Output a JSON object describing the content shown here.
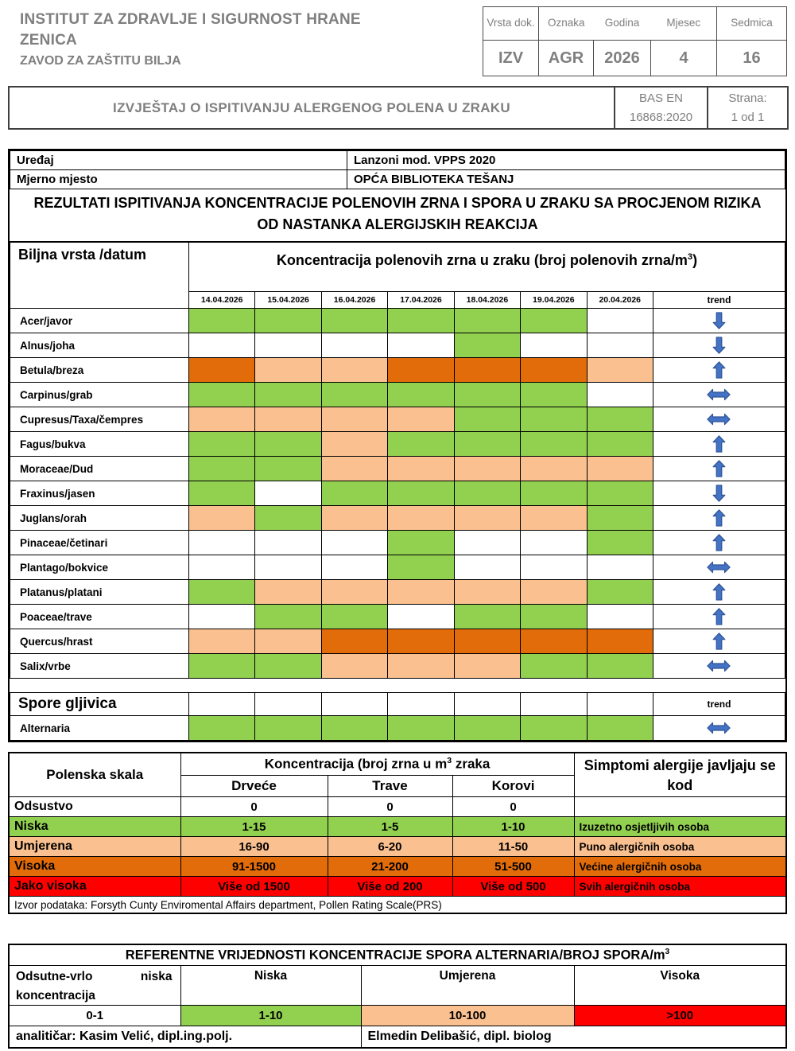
{
  "colors": {
    "level_low": "#92D050",
    "level_moderate": "#FAC08F",
    "level_high": "#E36C0A",
    "level_very_high": "#FF0000",
    "trend_arrow_fill": "#4472C4",
    "trend_arrow_stroke": "#2F5496",
    "header_text_gray": "#7F7F7F"
  },
  "letterhead": {
    "org_lines": [
      "INSTITUT ZA ZDRAVLJE I SIGURNOST HRANE",
      "ZENICA"
    ],
    "department": "ZAVOD ZA ZAŠTITU BILJA",
    "doc_meta": {
      "headers": [
        "Vrsta dok.",
        "Oznaka",
        "Godina",
        "Mjesec",
        "Sedmica"
      ],
      "values": [
        "IZV",
        "AGR",
        "2026",
        "4",
        "16"
      ]
    },
    "report_title": "IZVJEŠTAJ O ISPITIVANJU ALERGENOG POLENA U ZRAKU",
    "standard": [
      "BAS EN",
      "16868:2020"
    ],
    "page_label": "Strana:",
    "page_value": "1 od 1"
  },
  "main_table": {
    "device_label": "Uređaj",
    "device_value": "Lanzoni mod. VPPS 2020",
    "site_label": "Mjerno mjesto",
    "site_value": "OPĆA BIBLIOTEKA TEŠANJ",
    "results_title": "REZULTATI ISPITIVANJA KONCENTRACIJE POLENOVIH ZRNA I SPORA U ZRAKU SA PROCJENOM RIZIKA OD NASTANKA ALERGIJSKIH REAKCIJA",
    "species_date_header": "Biljna vrsta /datum",
    "concentration_header": {
      "prefix": "Koncentracija polenovih zrna u zraku (broj polenovih zrna/m",
      "sup": "3",
      "suffix": ")"
    },
    "dates": [
      "14.04.2026",
      "15.04.2026",
      "16.04.2026",
      "17.04.2026",
      "18.04.2026",
      "19.04.2026",
      "20.04.2026"
    ],
    "trend_label": "trend",
    "pollen_rows": [
      {
        "name": "Acer/javor",
        "levels": [
          "low",
          "low",
          "low",
          "low",
          "low",
          "low",
          "none"
        ],
        "trend": "down"
      },
      {
        "name": "Alnus/joha",
        "levels": [
          "none",
          "none",
          "none",
          "none",
          "low",
          "none",
          "none"
        ],
        "trend": "down"
      },
      {
        "name": "Betula/breza",
        "levels": [
          "high",
          "moderate",
          "moderate",
          "high",
          "high",
          "high",
          "moderate"
        ],
        "trend": "up"
      },
      {
        "name": "Carpinus/grab",
        "levels": [
          "low",
          "low",
          "low",
          "low",
          "low",
          "low",
          "none"
        ],
        "trend": "stable"
      },
      {
        "name": "Cupresus/Taxa/čempres",
        "levels": [
          "moderate",
          "moderate",
          "moderate",
          "moderate",
          "low",
          "low",
          "low"
        ],
        "trend": "stable"
      },
      {
        "name": "Fagus/bukva",
        "levels": [
          "low",
          "low",
          "moderate",
          "low",
          "low",
          "low",
          "low"
        ],
        "trend": "up"
      },
      {
        "name": "Moraceae/Dud",
        "levels": [
          "low",
          "low",
          "moderate",
          "moderate",
          "moderate",
          "moderate",
          "moderate"
        ],
        "trend": "up"
      },
      {
        "name": "Fraxinus/jasen",
        "levels": [
          "low",
          "none",
          "low",
          "low",
          "low",
          "low",
          "low"
        ],
        "trend": "down"
      },
      {
        "name": "Juglans/orah",
        "levels": [
          "moderate",
          "low",
          "moderate",
          "moderate",
          "moderate",
          "moderate",
          "low"
        ],
        "trend": "up"
      },
      {
        "name": "Pinaceae/četinari",
        "levels": [
          "none",
          "none",
          "none",
          "low",
          "none",
          "none",
          "low"
        ],
        "trend": "up"
      },
      {
        "name": "Plantago/bokvice",
        "levels": [
          "none",
          "none",
          "none",
          "low",
          "none",
          "none",
          "none"
        ],
        "trend": "stable"
      },
      {
        "name": "Platanus/platani",
        "levels": [
          "low",
          "moderate",
          "moderate",
          "moderate",
          "moderate",
          "moderate",
          "low"
        ],
        "trend": "up"
      },
      {
        "name": "Poaceae/trave",
        "levels": [
          "none",
          "low",
          "low",
          "none",
          "low",
          "low",
          "none"
        ],
        "trend": "up"
      },
      {
        "name": "Quercus/hrast",
        "levels": [
          "moderate",
          "moderate",
          "high",
          "high",
          "high",
          "high",
          "high"
        ],
        "trend": "up"
      },
      {
        "name": "Salix/vrbe",
        "levels": [
          "low",
          "low",
          "moderate",
          "moderate",
          "moderate",
          "low",
          "low"
        ],
        "trend": "stable"
      }
    ],
    "spores_section_label": "Spore gljivica",
    "spores_trend_label": "trend",
    "spore_rows": [
      {
        "name": "Alternaria",
        "levels": [
          "low",
          "low",
          "low",
          "low",
          "low",
          "low",
          "low"
        ],
        "trend": "stable"
      }
    ]
  },
  "scale_table": {
    "col1_header": "Polenska skala",
    "conc_header": {
      "prefix": "Koncentracija (broj zrna u m",
      "sup": "3",
      "suffix": " zraka"
    },
    "symptoms_header": "Simptomi alergije javljaju se kod",
    "sub_headers": [
      "Drveće",
      "Trave",
      "Korovi"
    ],
    "rows": [
      {
        "label": "Odsustvo",
        "values": [
          "0",
          "0",
          "0"
        ],
        "symptom": null,
        "level": "none"
      },
      {
        "label": "Niska",
        "values": [
          "1-15",
          "1-5",
          "1-10"
        ],
        "symptom": "Izuzetno osjetljivih osoba",
        "level": "low"
      },
      {
        "label": "Umjerena",
        "values": [
          "16-90",
          "6-20",
          "11-50"
        ],
        "symptom": "Puno alergičnih osoba",
        "level": "moderate"
      },
      {
        "label": "Visoka",
        "values": [
          "91-1500",
          "21-200",
          "51-500"
        ],
        "symptom": "Većine alergičnih osoba",
        "level": "high"
      },
      {
        "label": "Jako visoka",
        "values": [
          "Više od 1500",
          "Više od 200",
          "Više od 500"
        ],
        "symptom": "Svih alergičnih osoba",
        "level": "very_high"
      }
    ],
    "source_note": "Izvor podataka: Forsyth Cunty Enviromental Affairs department, Pollen Rating Scale(PRS)"
  },
  "reference_table": {
    "title": {
      "prefix": "REFERENTNE VRIJEDNOSTI KONCENTRACIJE SPORA ALTERNARIA/BROJ SPORA/m",
      "sup": "3"
    },
    "headers": [
      "Odsutne-vrlo niska koncentracija",
      "Niska",
      "Umjerena",
      "Visoka"
    ],
    "values": [
      {
        "text": "0-1",
        "level": "none"
      },
      {
        "text": "1-10",
        "level": "low"
      },
      {
        "text": "10-100",
        "level": "moderate"
      },
      {
        "text": ">100",
        "level": "very_high"
      }
    ],
    "analyst_left": "analitičar: Kasim Velić,  dipl.ing.polj.",
    "analyst_right": "Elmedin Delibašić, dipl. biolog"
  }
}
